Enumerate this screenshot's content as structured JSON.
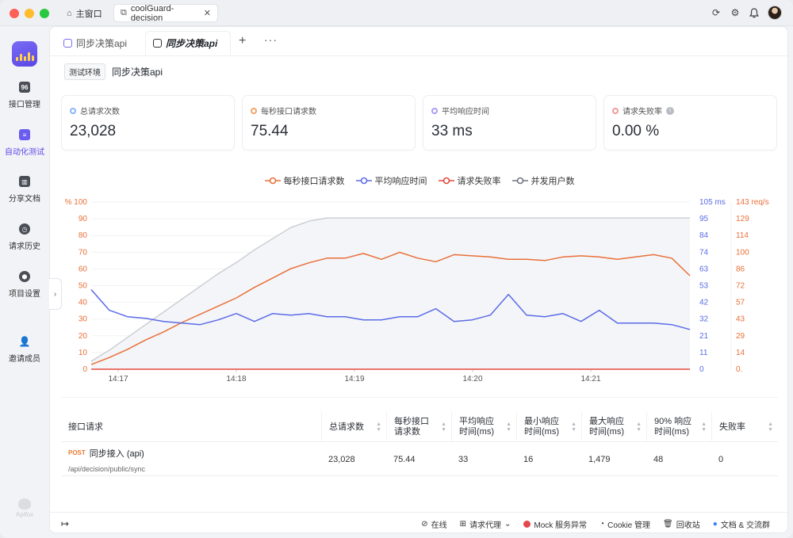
{
  "titlebar": {
    "home_tab": "主窗口",
    "active_tab": "coolGuard-decision"
  },
  "nav": {
    "items": [
      {
        "label": "接口管理",
        "icon": "api-icon"
      },
      {
        "label": "自动化测试",
        "icon": "automation-icon"
      },
      {
        "label": "分享文档",
        "icon": "book-icon"
      },
      {
        "label": "请求历史",
        "icon": "clock-icon"
      },
      {
        "label": "项目设置",
        "icon": "settings-icon"
      },
      {
        "label": "邀请成员",
        "icon": "user-add-icon"
      }
    ],
    "brand": "Apifox"
  },
  "page_tabs": {
    "tab1": "同步决策api",
    "tab2": "同步决策api"
  },
  "env": {
    "tag": "测试环境",
    "title": "同步决策api"
  },
  "cards": [
    {
      "label": "总请求次数",
      "value": "23,028",
      "color": "#8ab4f8"
    },
    {
      "label": "每秒接口请求数",
      "value": "75.44",
      "color": "#f0a56b"
    },
    {
      "label": "平均响应时间",
      "value": "33 ms",
      "color": "#a99cf5"
    },
    {
      "label": "请求失败率",
      "value": "0.00 %",
      "color": "#f19a9a"
    }
  ],
  "chart_data": {
    "type": "line",
    "legend": [
      {
        "name": "每秒接口请求数",
        "color": "#e8703a"
      },
      {
        "name": "平均响应时间",
        "color": "#5b6be8"
      },
      {
        "name": "请求失败率",
        "color": "#e5483a"
      },
      {
        "name": "并发用户数",
        "color": "#707480"
      }
    ],
    "x_ticks": [
      "14:17",
      "14:18",
      "14:19",
      "14:20",
      "14:21"
    ],
    "axes": {
      "left": {
        "unit": "%",
        "ticks": [
          "0",
          "10",
          "20",
          "30",
          "40",
          "50",
          "60",
          "70",
          "80",
          "90",
          "100"
        ],
        "range": [
          0,
          100
        ]
      },
      "right1": {
        "unit": "ms",
        "ticks": [
          "0",
          "11",
          "21",
          "32",
          "42",
          "53",
          "63",
          "74",
          "84",
          "95",
          "105"
        ],
        "range": [
          0,
          105
        ]
      },
      "right2": {
        "unit": "req/s",
        "ticks": [
          "0.",
          "14",
          "29",
          "43",
          "57",
          "72",
          "86",
          "100",
          "114",
          "129",
          "143"
        ],
        "range": [
          0,
          143
        ]
      }
    },
    "top_labels": {
      "left": "% 100",
      "right1": "105 ms",
      "right2": "143 req/s"
    },
    "series": [
      {
        "name": "每秒接口请求数",
        "axis": "right2",
        "values": [
          4,
          10,
          17,
          25,
          32,
          40,
          47,
          54,
          61,
          70,
          78,
          86,
          91,
          95,
          95,
          99,
          94,
          100,
          95,
          92,
          98,
          97,
          96,
          94,
          94,
          93,
          96,
          97,
          96,
          94,
          96,
          98,
          95,
          80
        ]
      },
      {
        "name": "平均响应时间",
        "axis": "right1",
        "values": [
          50,
          37,
          33,
          32,
          30,
          29,
          28,
          31,
          35,
          30,
          35,
          34,
          35,
          33,
          33,
          31,
          31,
          33,
          33,
          38,
          30,
          31,
          34,
          47,
          34,
          33,
          35,
          30,
          37,
          29,
          29,
          29,
          28,
          25
        ]
      },
      {
        "name": "请求失败率",
        "axis": "left",
        "values": [
          0,
          0,
          0,
          0,
          0,
          0,
          0,
          0,
          0,
          0,
          0,
          0,
          0,
          0,
          0,
          0,
          0,
          0,
          0,
          0,
          0,
          0,
          0,
          0,
          0,
          0,
          0,
          0,
          0,
          0,
          0,
          0,
          0,
          0
        ]
      },
      {
        "name": "并发用户数",
        "axis": "right1",
        "values": [
          5,
          12,
          20,
          28,
          36,
          44,
          52,
          60,
          67,
          75,
          82,
          89,
          93,
          95,
          95,
          95,
          95,
          95,
          95,
          95,
          95,
          95,
          95,
          95,
          95,
          95,
          95,
          95,
          95,
          95,
          95,
          95,
          95,
          95
        ]
      }
    ]
  },
  "table": {
    "headers": [
      "接口请求",
      "总请求数",
      "每秒接口\n请求数",
      "平均响应\n时间(ms)",
      "最小响应\n时间(ms)",
      "最大响应\n时间(ms)",
      "90% 响应\n时间(ms)",
      "失败率"
    ],
    "rows": [
      {
        "method": "POST",
        "name": "同步接入 (api)",
        "path": "/api/decision/public/sync",
        "cells": [
          "23,028",
          "75.44",
          "33",
          "16",
          "1,479",
          "48",
          "0"
        ]
      }
    ]
  },
  "statusbar": {
    "online": "在线",
    "proxy": "请求代理",
    "mock": "Mock 服务异常",
    "cookie": "Cookie 管理",
    "recycle": "回收站",
    "docs": "文档 & 交流群"
  }
}
